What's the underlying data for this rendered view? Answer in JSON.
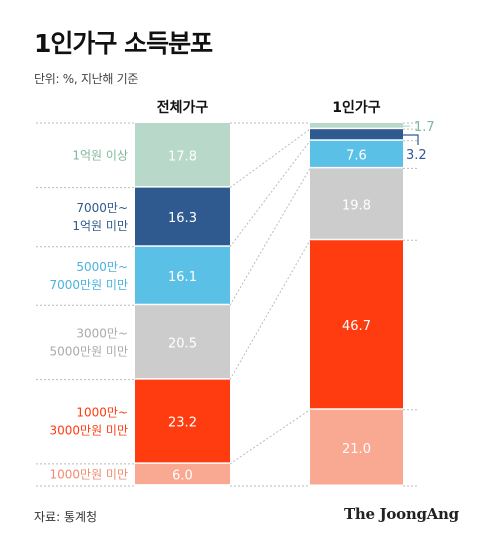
{
  "title": "1인가구 소득분포",
  "unit_note": "단위: %, 지난해 기준",
  "source": "자료: 통계청",
  "brand": "The JoongAng",
  "chart_data": {
    "type": "bar",
    "stacked": true,
    "ylim": [
      0,
      100
    ],
    "categories": [
      "전체가구",
      "1인가구"
    ],
    "segments": [
      {
        "label_lines": [
          "1억원 이상"
        ],
        "color": "#b8d9c9",
        "label_color": "#7fb89a",
        "text_color": "#ffffff",
        "values": [
          17.8,
          1.7
        ],
        "display": [
          "17.8",
          "1.7"
        ]
      },
      {
        "label_lines": [
          "7000만~",
          "1억원 미만"
        ],
        "color": "#2f5a90",
        "label_color": "#2f5a90",
        "text_color": "#ffffff",
        "values": [
          16.3,
          3.2
        ],
        "display": [
          "16.3",
          "3.2"
        ]
      },
      {
        "label_lines": [
          "5000만~",
          "7000만원 미만"
        ],
        "color": "#5bc0e6",
        "label_color": "#4bb3de",
        "text_color": "#ffffff",
        "values": [
          16.1,
          7.6
        ],
        "display": [
          "16.1",
          "7.6"
        ]
      },
      {
        "label_lines": [
          "3000만~",
          "5000만원 미만"
        ],
        "color": "#cccccc",
        "label_color": "#aaaaaa",
        "text_color": "#ffffff",
        "values": [
          20.5,
          19.8
        ],
        "display": [
          "20.5",
          "19.8"
        ]
      },
      {
        "label_lines": [
          "1000만~",
          "3000만원 미만"
        ],
        "color": "#ff3b10",
        "label_color": "#ff3b10",
        "text_color": "#ffffff",
        "values": [
          23.2,
          46.7
        ],
        "display": [
          "23.2",
          "46.7"
        ]
      },
      {
        "label_lines": [
          "1000만원 미만"
        ],
        "color": "#f9a991",
        "label_color": "#f08c72",
        "text_color": "#ffffff",
        "values": [
          6.0,
          21.0
        ],
        "display": [
          "6.0",
          "21.0"
        ]
      }
    ]
  }
}
